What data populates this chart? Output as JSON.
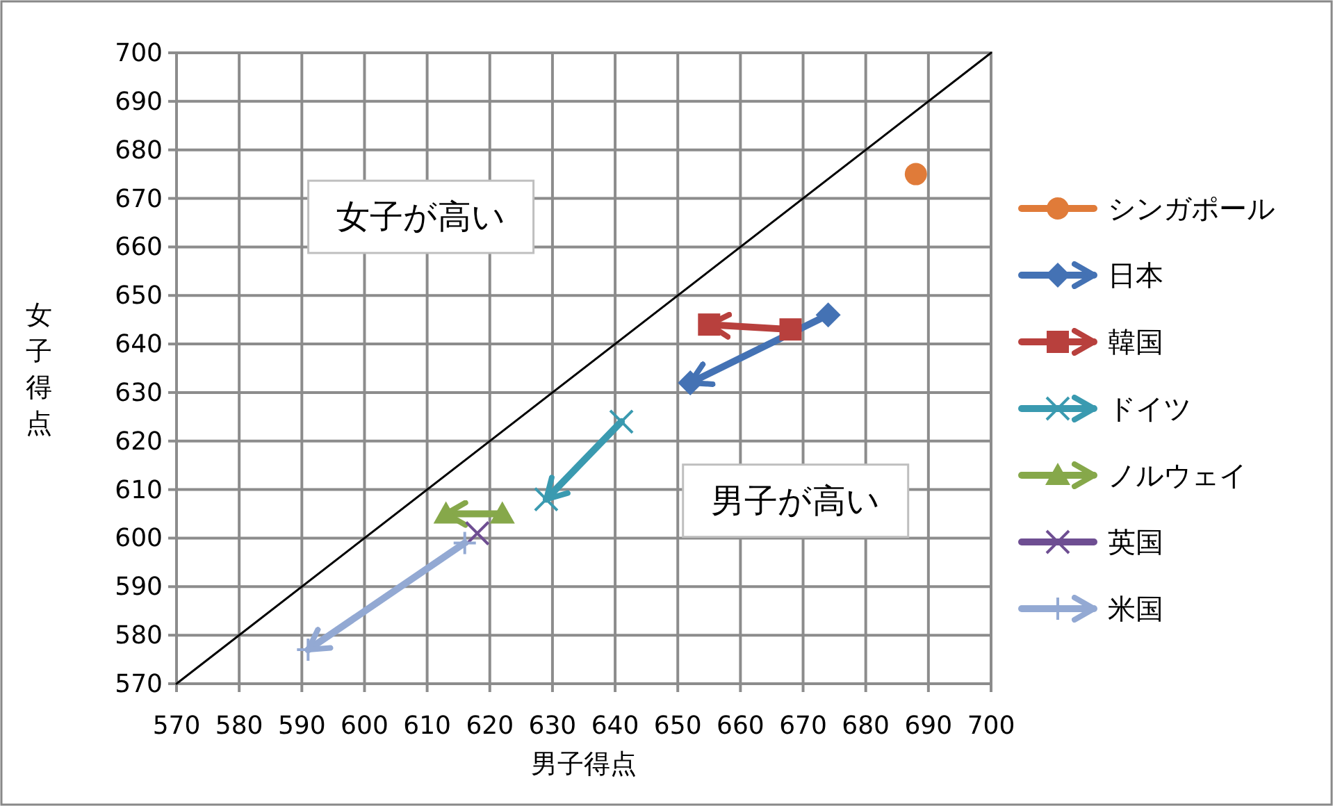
{
  "chart_data": {
    "type": "line",
    "xlabel": "男子得点",
    "ylabel": "女子得点",
    "xlim": [
      570,
      700
    ],
    "ylim": [
      570,
      700
    ],
    "xticks": [
      570,
      580,
      590,
      600,
      610,
      620,
      630,
      640,
      650,
      660,
      670,
      680,
      690,
      700
    ],
    "yticks": [
      570,
      580,
      590,
      600,
      610,
      620,
      630,
      640,
      650,
      660,
      670,
      680,
      690,
      700
    ],
    "grid": true,
    "legend": "right",
    "annotations": [
      "女子が高い",
      "男子が高い"
    ],
    "series": [
      {
        "type": "line",
        "color": "#000000",
        "marker": "none",
        "x": [
          570,
          700
        ],
        "values": [
          570,
          700
        ]
      },
      {
        "name": "シンガポール",
        "type": "scatter",
        "color": "#e07b39",
        "marker": "circle",
        "x": [
          688
        ],
        "values": [
          675
        ]
      },
      {
        "name": "日本",
        "color": "#4472b4",
        "marker": "diamond",
        "x": [
          674,
          652
        ],
        "values": [
          646,
          632
        ]
      },
      {
        "name": "韓国",
        "color": "#b8403d",
        "marker": "square",
        "x": [
          668,
          655
        ],
        "values": [
          643,
          644
        ]
      },
      {
        "name": "ドイツ",
        "color": "#3a9ab0",
        "marker": "cross",
        "x": [
          641,
          629
        ],
        "values": [
          624,
          608
        ]
      },
      {
        "name": "ノルウェイ",
        "color": "#86a84a",
        "marker": "triangle",
        "x": [
          622,
          613
        ],
        "values": [
          605,
          605
        ]
      },
      {
        "name": "英国",
        "type": "scatter",
        "color": "#6e4e92",
        "marker": "cross",
        "x": [
          618
        ],
        "values": [
          601
        ]
      },
      {
        "name": "米国",
        "color": "#93a9d3",
        "marker": "plus",
        "x": [
          616,
          591
        ],
        "values": [
          599,
          577
        ]
      }
    ]
  }
}
